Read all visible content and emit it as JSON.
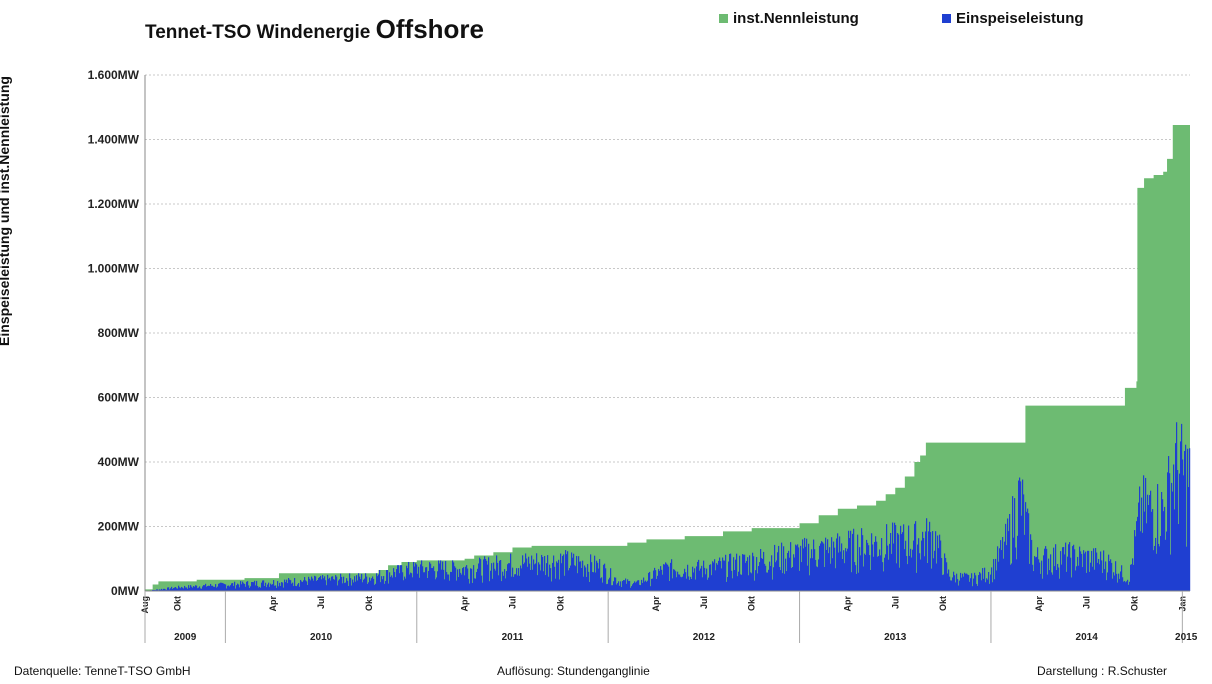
{
  "chart_data": {
    "type": "area",
    "title": "Tennet-TSO  Windenergie",
    "title_emphasis": "Offshore",
    "ylabel": "Einspeiseleistung und inst.Nennleistung",
    "ylim": [
      0,
      1600
    ],
    "yticks": [
      {
        "value": 0,
        "label": "0MW"
      },
      {
        "value": 200,
        "label": "200MW"
      },
      {
        "value": 400,
        "label": "400MW"
      },
      {
        "value": 600,
        "label": "600MW"
      },
      {
        "value": 800,
        "label": "800MW"
      },
      {
        "value": 1000,
        "label": "1.000MW"
      },
      {
        "value": 1200,
        "label": "1.200MW"
      },
      {
        "value": 1400,
        "label": "1.400MW"
      },
      {
        "value": 1600,
        "label": "1.600MW"
      }
    ],
    "grid": true,
    "legend_placement": "top-right",
    "xlim": [
      2009.58,
      2015.04
    ],
    "month_ticks": [
      {
        "t": 2009.58,
        "label": "Aug"
      },
      {
        "t": 2009.75,
        "label": "Okt"
      },
      {
        "t": 2010.25,
        "label": "Apr"
      },
      {
        "t": 2010.5,
        "label": "Jul"
      },
      {
        "t": 2010.75,
        "label": "Okt"
      },
      {
        "t": 2011.25,
        "label": "Apr"
      },
      {
        "t": 2011.5,
        "label": "Jul"
      },
      {
        "t": 2011.75,
        "label": "Okt"
      },
      {
        "t": 2012.25,
        "label": "Apr"
      },
      {
        "t": 2012.5,
        "label": "Jul"
      },
      {
        "t": 2012.75,
        "label": "Okt"
      },
      {
        "t": 2013.25,
        "label": "Apr"
      },
      {
        "t": 2013.5,
        "label": "Jul"
      },
      {
        "t": 2013.75,
        "label": "Okt"
      },
      {
        "t": 2014.25,
        "label": "Apr"
      },
      {
        "t": 2014.5,
        "label": "Jul"
      },
      {
        "t": 2014.75,
        "label": "Okt"
      },
      {
        "t": 2015.0,
        "label": "Jan"
      }
    ],
    "year_ticks": [
      {
        "label": "2009",
        "from": 2009.58,
        "to": 2010.0
      },
      {
        "label": "2010",
        "from": 2010.0,
        "to": 2011.0
      },
      {
        "label": "2011",
        "from": 2011.0,
        "to": 2012.0
      },
      {
        "label": "2012",
        "from": 2012.0,
        "to": 2013.0
      },
      {
        "label": "2013",
        "from": 2013.0,
        "to": 2014.0
      },
      {
        "label": "2014",
        "from": 2014.0,
        "to": 2015.0
      },
      {
        "label": "2015",
        "from": 2015.0,
        "to": 2015.04
      }
    ],
    "series": [
      {
        "name": "inst.Nennleistung",
        "color": "#6dbb72",
        "points": [
          [
            2009.58,
            5
          ],
          [
            2009.62,
            20
          ],
          [
            2009.65,
            30
          ],
          [
            2009.82,
            30
          ],
          [
            2009.85,
            35
          ],
          [
            2010.08,
            35
          ],
          [
            2010.1,
            40
          ],
          [
            2010.25,
            40
          ],
          [
            2010.28,
            55
          ],
          [
            2010.75,
            55
          ],
          [
            2010.8,
            65
          ],
          [
            2010.85,
            80
          ],
          [
            2010.92,
            90
          ],
          [
            2011.0,
            95
          ],
          [
            2011.25,
            100
          ],
          [
            2011.3,
            110
          ],
          [
            2011.4,
            120
          ],
          [
            2011.5,
            135
          ],
          [
            2011.6,
            140
          ],
          [
            2012.0,
            140
          ],
          [
            2012.1,
            150
          ],
          [
            2012.2,
            160
          ],
          [
            2012.4,
            170
          ],
          [
            2012.6,
            185
          ],
          [
            2012.75,
            195
          ],
          [
            2013.0,
            210
          ],
          [
            2013.1,
            235
          ],
          [
            2013.2,
            255
          ],
          [
            2013.3,
            265
          ],
          [
            2013.4,
            280
          ],
          [
            2013.45,
            300
          ],
          [
            2013.5,
            320
          ],
          [
            2013.55,
            355
          ],
          [
            2013.6,
            400
          ],
          [
            2013.63,
            420
          ],
          [
            2013.66,
            460
          ],
          [
            2014.15,
            460
          ],
          [
            2014.18,
            575
          ],
          [
            2014.69,
            575
          ],
          [
            2014.7,
            630
          ],
          [
            2014.76,
            650
          ],
          [
            2014.765,
            1250
          ],
          [
            2014.8,
            1280
          ],
          [
            2014.85,
            1290
          ],
          [
            2014.9,
            1300
          ],
          [
            2014.92,
            1340
          ],
          [
            2014.95,
            1445
          ],
          [
            2015.04,
            1445
          ]
        ]
      },
      {
        "name": "Einspeiseleistung",
        "color": "#1f3fd1",
        "points": [
          [
            2009.58,
            0
          ],
          [
            2009.75,
            15
          ],
          [
            2010.0,
            25
          ],
          [
            2010.25,
            35
          ],
          [
            2010.5,
            45
          ],
          [
            2010.75,
            55
          ],
          [
            2010.9,
            80
          ],
          [
            2011.0,
            90
          ],
          [
            2011.25,
            90
          ],
          [
            2011.5,
            110
          ],
          [
            2011.75,
            120
          ],
          [
            2011.95,
            100
          ],
          [
            2012.05,
            40
          ],
          [
            2012.15,
            30
          ],
          [
            2012.3,
            90
          ],
          [
            2012.5,
            90
          ],
          [
            2012.75,
            120
          ],
          [
            2013.0,
            150
          ],
          [
            2013.2,
            170
          ],
          [
            2013.4,
            190
          ],
          [
            2013.6,
            200
          ],
          [
            2013.7,
            220
          ],
          [
            2013.78,
            60
          ],
          [
            2013.9,
            50
          ],
          [
            2014.0,
            80
          ],
          [
            2014.08,
            200
          ],
          [
            2014.15,
            380
          ],
          [
            2014.22,
            130
          ],
          [
            2014.4,
            140
          ],
          [
            2014.6,
            120
          ],
          [
            2014.72,
            50
          ],
          [
            2014.78,
            330
          ],
          [
            2014.9,
            320
          ],
          [
            2014.96,
            500
          ],
          [
            2015.04,
            450
          ]
        ]
      }
    ]
  },
  "footer": {
    "source": "Datenquelle: TenneT-TSO GmbH",
    "resolution": "Auflösung: Stundenganglinie",
    "author": "Darstellung : R.Schuster"
  }
}
